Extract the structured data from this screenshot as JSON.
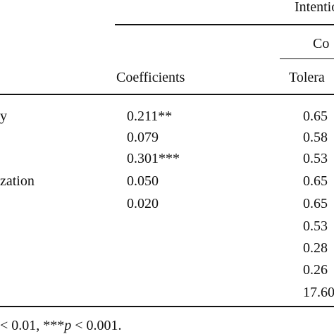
{
  "table": {
    "group_header": "Intentio",
    "subgroup_header": "Co",
    "column_headers": {
      "coefficients": "Coefficients",
      "tolerance": "Tolera"
    },
    "rows": [
      {
        "label": "y",
        "coef": "0.211**",
        "tol": "0.65"
      },
      {
        "label": "",
        "coef": "0.079",
        "tol": "0.58"
      },
      {
        "label": "",
        "coef": "0.301***",
        "tol": "0.53"
      },
      {
        "label": "zation",
        "coef": "0.050",
        "tol": "0.65"
      },
      {
        "label": "",
        "coef": "0.020",
        "tol": "0.65"
      },
      {
        "label": "",
        "coef": "",
        "tol": "0.53"
      },
      {
        "label": "",
        "coef": "",
        "tol": "0.28"
      },
      {
        "label": "",
        "coef": "",
        "tol": "0.26"
      },
      {
        "label": "",
        "coef": "",
        "tol": "17.60"
      }
    ],
    "footnote": {
      "prefix": "< 0.01, ***",
      "p": "p",
      "suffix": " < 0.001."
    }
  }
}
